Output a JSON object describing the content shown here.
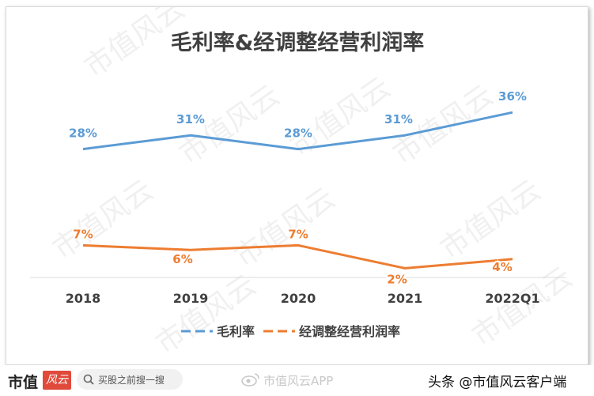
{
  "chart_data": {
    "type": "line",
    "title": "毛利率&经调整经营利润率",
    "categories": [
      "2018",
      "2019",
      "2020",
      "2021",
      "2022Q1"
    ],
    "series": [
      {
        "name": "毛利率",
        "values": [
          28,
          31,
          28,
          31,
          36
        ],
        "labels": [
          "28%",
          "31%",
          "28%",
          "31%",
          "36%"
        ],
        "color": "#5b9bd5"
      },
      {
        "name": "经调整经营利润率",
        "values": [
          7,
          6,
          7,
          2,
          4
        ],
        "labels": [
          "7%",
          "6%",
          "7%",
          "2%",
          "4%"
        ],
        "color": "#ed7d31"
      }
    ],
    "ylim": [
      0,
      40
    ],
    "xlabel": "",
    "ylabel": "",
    "grid": false,
    "legend": "bottom"
  },
  "watermark": "市值风云",
  "footer": {
    "brand": "市值",
    "brand_logo": "风云",
    "search_placeholder": "买股之前搜一搜",
    "source_app": "市值风云APP",
    "toutiao": "头条 @市值风云客户端"
  },
  "colors": {
    "title": "#404040",
    "axis_label": "#404040",
    "axis_line": "#d9d9d9"
  }
}
